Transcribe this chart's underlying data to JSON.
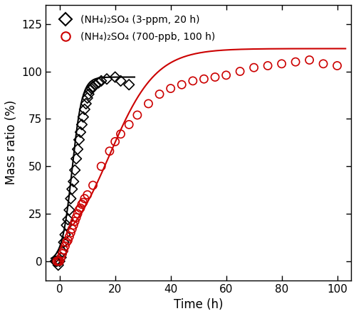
{
  "title": "",
  "xlabel": "Time (h)",
  "ylabel": "Mass ratio (%)",
  "xlim": [
    -5,
    105
  ],
  "ylim": [
    -10,
    135
  ],
  "xticks": [
    0,
    20,
    40,
    60,
    80,
    100
  ],
  "yticks": [
    0,
    25,
    50,
    75,
    100,
    125
  ],
  "black_x": [
    -1.5,
    -1.0,
    -0.5,
    0.0,
    0.5,
    1.0,
    1.5,
    2.0,
    2.5,
    3.0,
    3.5,
    4.0,
    4.5,
    5.0,
    5.5,
    6.0,
    6.5,
    7.0,
    7.5,
    8.0,
    8.5,
    9.0,
    9.5,
    10.0,
    10.5,
    11.0,
    11.5,
    12.0,
    13.0,
    14.0,
    15.0,
    17.0,
    20.0,
    22.0,
    25.0
  ],
  "black_y": [
    0,
    0,
    -2,
    0,
    2,
    5,
    10,
    14,
    19,
    22,
    27,
    33,
    38,
    42,
    48,
    54,
    59,
    64,
    68,
    72,
    76,
    80,
    83,
    86,
    88,
    90,
    91,
    92,
    93,
    94,
    95,
    96,
    97,
    95,
    93
  ],
  "red_x": [
    -1.0,
    -0.5,
    0.0,
    0.5,
    1.0,
    1.5,
    2.0,
    2.5,
    3.0,
    3.5,
    4.0,
    4.5,
    5.0,
    5.5,
    6.0,
    6.5,
    7.0,
    7.5,
    8.0,
    8.5,
    9.0,
    10.0,
    12.0,
    15.0,
    18.0,
    20.0,
    22.0,
    25.0,
    28.0,
    32.0,
    36.0,
    40.0,
    44.0,
    48.0,
    52.0,
    56.0,
    60.0,
    65.0,
    70.0,
    75.0,
    80.0,
    85.0,
    90.0,
    95.0,
    100.0
  ],
  "red_y": [
    0,
    0,
    0,
    2,
    4,
    6,
    8,
    10,
    11,
    13,
    15,
    17,
    19,
    21,
    23,
    25,
    27,
    28,
    30,
    31,
    33,
    35,
    40,
    50,
    58,
    63,
    67,
    72,
    77,
    83,
    88,
    91,
    93,
    95,
    96,
    97,
    98,
    100,
    102,
    103,
    104,
    105,
    106,
    104,
    103
  ],
  "black_color": "#000000",
  "red_color": "#cc0000",
  "legend_label_black": "(NH₄)₂SO₄ (3-ppm, 20 h)",
  "legend_label_red": "(NH₄)₂SO₄ (700-ppb, 100 h)",
  "figsize": [
    5.0,
    4.45
  ],
  "dpi": 100,
  "black_fit_x0": 4.5,
  "black_fit_k": 0.55,
  "black_fit_A": 97.0,
  "red_fit_x0": 18.0,
  "red_fit_k": 0.12,
  "red_fit_A": 112.0
}
